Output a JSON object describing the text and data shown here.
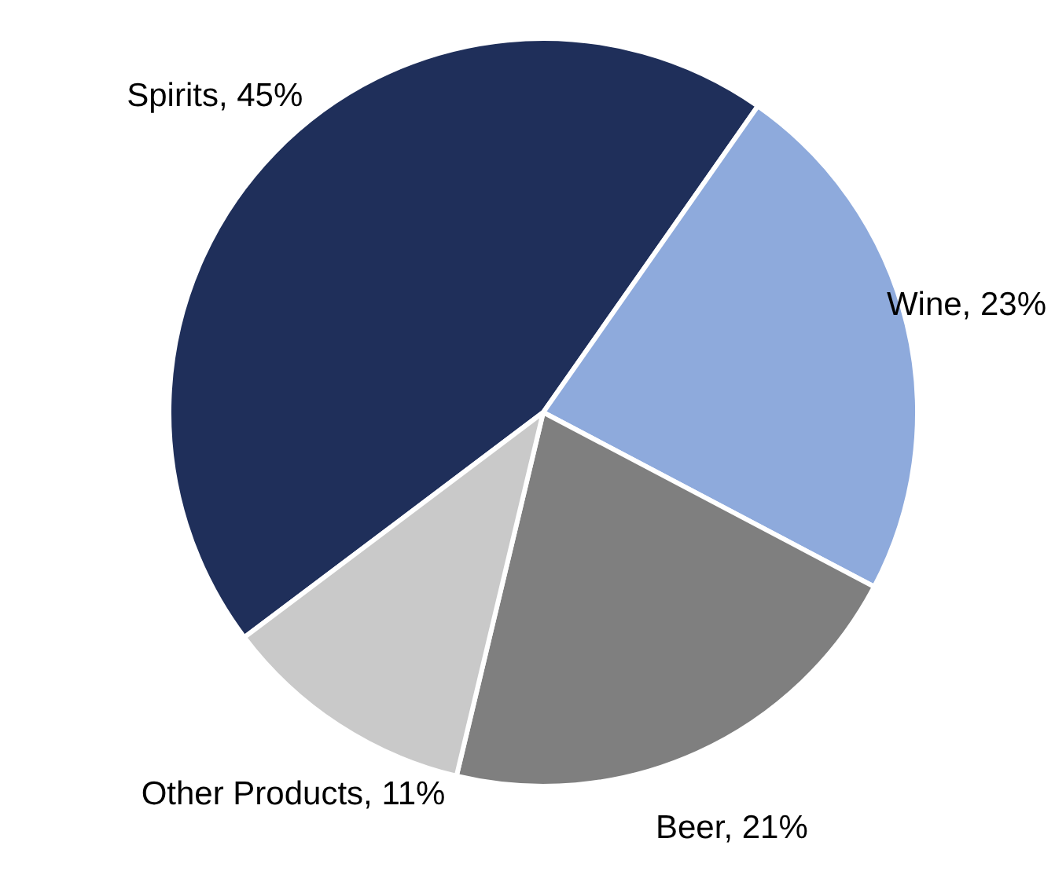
{
  "chart_data": {
    "type": "pie",
    "categories": [
      "Spirits",
      "Wine",
      "Beer",
      "Other Products"
    ],
    "values": [
      45,
      23,
      21,
      11
    ],
    "value_labels": [
      "45%",
      "23%",
      "21%",
      "11%"
    ],
    "colors": [
      "#1f2f5a",
      "#8eaadc",
      "#7f7f7f",
      "#c9c9c9"
    ]
  }
}
